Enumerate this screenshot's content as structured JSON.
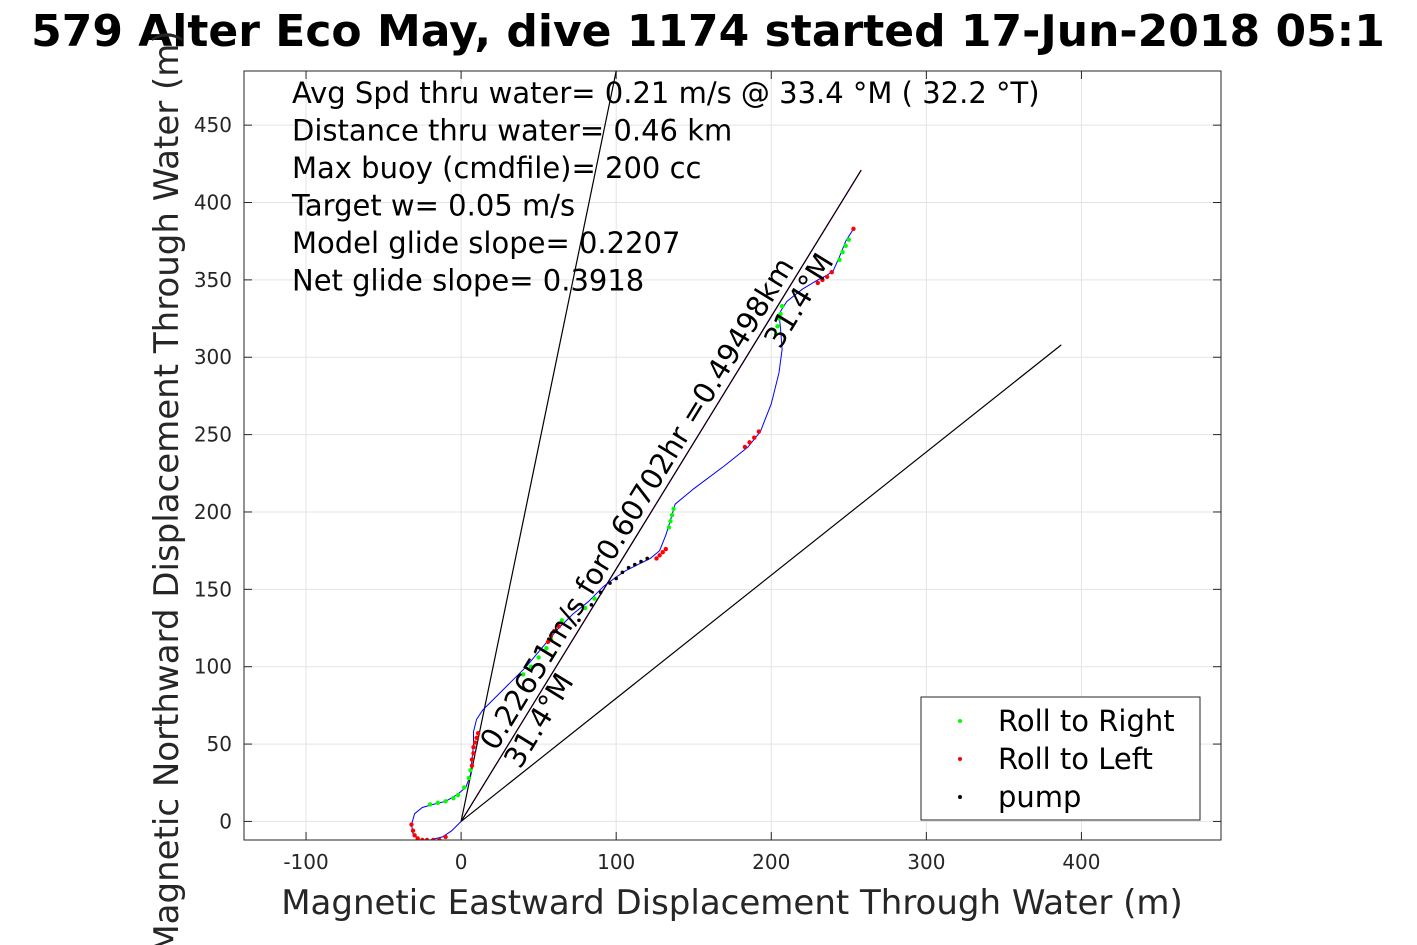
{
  "chart_data": {
    "type": "scatter",
    "title": "579 Alter Eco May, dive 1174 started 17-Jun-2018 05:1",
    "xlabel": "Magnetic Eastward Displacement Through Water (m)",
    "ylabel": "Magnetic Northward Displacement Through Water (m)",
    "xlim": [
      -140,
      490
    ],
    "ylim": [
      -12,
      485
    ],
    "xticks": [
      -100,
      0,
      100,
      200,
      300,
      400
    ],
    "yticks": [
      0,
      50,
      100,
      150,
      200,
      250,
      300,
      350,
      400,
      450
    ],
    "grid": true,
    "legend_position": "bottom-right",
    "colors": {
      "roll_right": "#00ff00",
      "roll_left": "#ff0000",
      "pump": "#000000",
      "track": "#0000ff",
      "model_line": "#ff00ff",
      "guide_lines": "#000000",
      "grid": "#e3e3e3"
    },
    "text_box": [
      "Avg Spd thru water=  0.21 m/s @  33.4 °M ( 32.2 °T)",
      "Distance thru water=  0.46 km",
      "Max buoy (cmdfile)= 200 cc",
      "Target w= 0.05 m/s",
      "Model glide slope= 0.2207",
      "Net glide slope= 0.3918"
    ],
    "annotations": {
      "line_label_main": "0.22651m/s for0.60702hr =0.49498km",
      "heading_near_origin": "31.4°M",
      "heading_near_end": "31.4°M"
    },
    "lines": [
      {
        "role": "model",
        "x": [
          0,
          258
        ],
        "y": [
          0,
          421
        ]
      },
      {
        "role": "guide",
        "x": [
          0,
          100
        ],
        "y": [
          0,
          485
        ]
      },
      {
        "role": "guide",
        "x": [
          0,
          387
        ],
        "y": [
          0,
          308
        ]
      },
      {
        "role": "guide",
        "x": [
          0,
          258
        ],
        "y": [
          0,
          421
        ]
      }
    ],
    "track": {
      "x": [
        0,
        -6,
        -12,
        -20,
        -27,
        -31,
        -32,
        -30,
        -25,
        -18,
        -10,
        -3,
        3,
        6,
        7,
        8,
        8,
        10,
        14,
        22,
        32,
        42,
        52,
        62,
        72,
        82,
        92,
        100,
        106,
        110,
        114,
        118,
        122,
        128,
        132,
        136,
        138,
        150,
        170,
        185,
        193,
        200,
        205,
        207,
        206,
        205,
        210,
        220,
        230,
        236,
        240,
        244,
        248,
        253
      ],
      "y": [
        0,
        -6,
        -10,
        -12,
        -12,
        -8,
        -2,
        5,
        9,
        11,
        13,
        17,
        22,
        30,
        40,
        50,
        58,
        66,
        72,
        80,
        90,
        100,
        112,
        124,
        134,
        142,
        152,
        158,
        162,
        164,
        166,
        168,
        170,
        175,
        185,
        198,
        205,
        215,
        230,
        242,
        252,
        270,
        290,
        305,
        318,
        328,
        336,
        344,
        350,
        353,
        356,
        365,
        375,
        383
      ]
    },
    "series": [
      {
        "name": "Roll to Right",
        "x": [
          -20,
          -15,
          -10,
          -5,
          -2,
          2,
          5,
          6,
          40,
          45,
          50,
          55,
          58,
          65,
          80,
          86,
          134,
          135,
          136,
          137,
          203,
          204,
          205,
          206,
          207,
          244,
          246,
          248,
          250
        ],
        "y": [
          11,
          12,
          13,
          15,
          17,
          22,
          28,
          33,
          95,
          100,
          106,
          112,
          118,
          130,
          138,
          144,
          190,
          194,
          198,
          202,
          315,
          320,
          325,
          328,
          333,
          363,
          368,
          372,
          376
        ]
      },
      {
        "name": "Roll to Left",
        "x": [
          -32,
          -31,
          -30,
          -28,
          -25,
          -22,
          -18,
          -14,
          -10,
          7,
          7,
          8,
          8,
          9,
          10,
          11,
          56,
          58,
          60,
          63,
          126,
          128,
          130,
          132,
          183,
          186,
          189,
          192,
          230,
          233,
          236,
          239,
          253
        ],
        "y": [
          -2,
          -6,
          -9,
          -11,
          -12,
          -12,
          -12,
          -12,
          -10,
          36,
          40,
          44,
          48,
          51,
          54,
          57,
          116,
          120,
          123,
          126,
          170,
          172,
          174,
          176,
          242,
          245,
          248,
          252,
          348,
          350,
          352,
          355,
          383
        ]
      },
      {
        "name": "pump",
        "x": [
          76,
          84,
          90,
          96,
          100,
          104,
          108,
          112,
          116,
          120
        ],
        "y": [
          130,
          140,
          148,
          154,
          157,
          161,
          164,
          166,
          168,
          170
        ]
      }
    ]
  }
}
